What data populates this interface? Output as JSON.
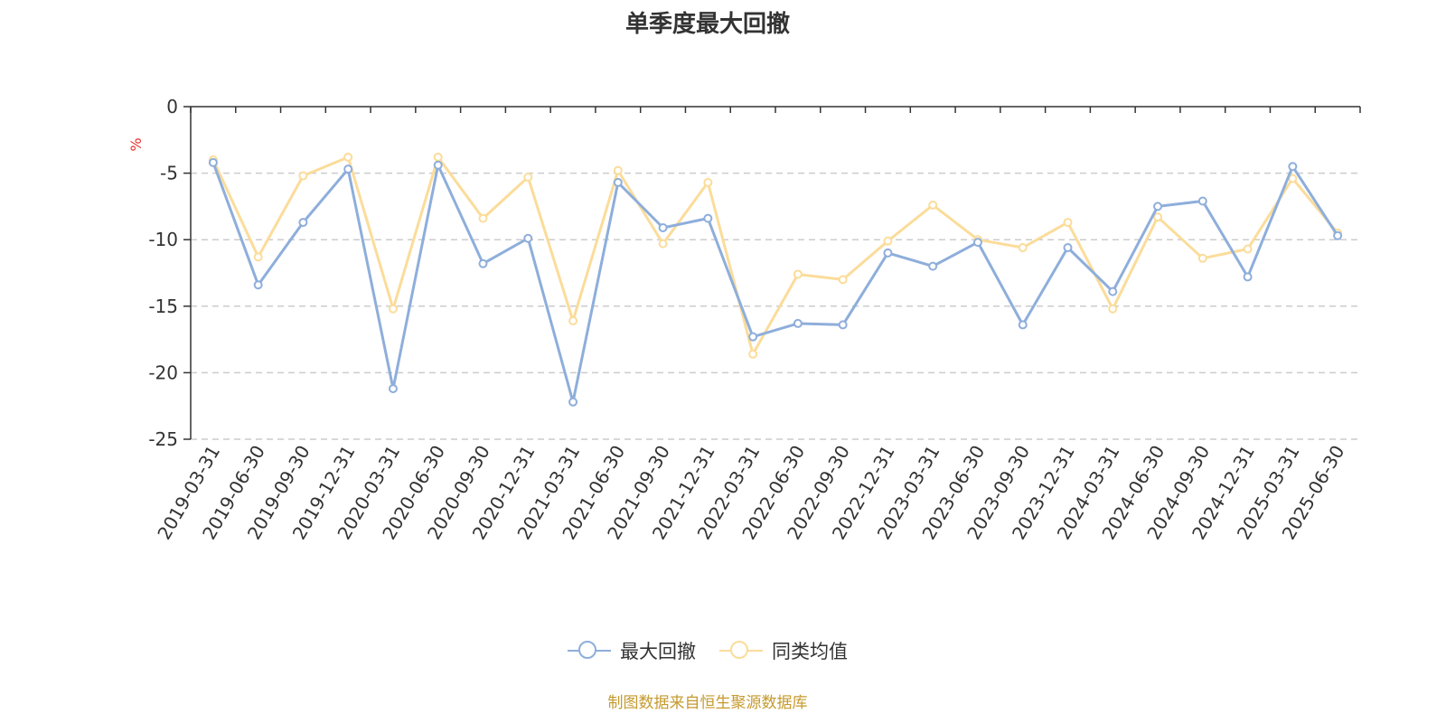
{
  "title": "单季度最大回撤",
  "source_note": "制图数据来自恒生聚源数据库",
  "colors": {
    "series_max_drawdown": "#8eaedb",
    "series_peer_avg": "#fbdc9a",
    "axis": "#333333",
    "grid": "#cccccc",
    "unit_label": "#e8312a",
    "source_note": "#c59a2e"
  },
  "chart_data": {
    "type": "line",
    "x": [
      "2019-03-31",
      "2019-06-30",
      "2019-09-30",
      "2019-12-31",
      "2020-03-31",
      "2020-06-30",
      "2020-09-30",
      "2020-12-31",
      "2021-03-31",
      "2021-06-30",
      "2021-09-30",
      "2021-12-31",
      "2022-03-31",
      "2022-06-30",
      "2022-09-30",
      "2022-12-31",
      "2023-03-31",
      "2023-06-30",
      "2023-09-30",
      "2023-12-31",
      "2024-03-31",
      "2024-06-30",
      "2024-09-30",
      "2024-12-31",
      "2025-03-31",
      "2025-06-30"
    ],
    "series": [
      {
        "name": "最大回撤",
        "values": [
          -4.2,
          -13.4,
          -8.7,
          -4.7,
          -21.2,
          -4.4,
          -11.8,
          -9.9,
          -22.2,
          -5.7,
          -9.1,
          -8.4,
          -17.3,
          -16.3,
          -16.4,
          -11.0,
          -12.0,
          -10.2,
          -16.4,
          -10.6,
          -13.9,
          -7.5,
          -7.1,
          -12.8,
          -4.5,
          -9.7
        ]
      },
      {
        "name": "同类均值",
        "values": [
          -4.0,
          -11.3,
          -5.2,
          -3.8,
          -15.2,
          -3.8,
          -8.4,
          -5.3,
          -16.1,
          -4.8,
          -10.3,
          -5.7,
          -18.6,
          -12.6,
          -13.0,
          -10.1,
          -7.4,
          -10.0,
          -10.6,
          -8.7,
          -15.2,
          -8.3,
          -11.4,
          -10.7,
          -5.4,
          -9.5
        ]
      }
    ],
    "yunit": "%",
    "ylim": [
      -25,
      0
    ],
    "yticks": [
      0,
      -5,
      -10,
      -15,
      -20,
      -25
    ],
    "grid": true,
    "legend_position": "bottom"
  }
}
